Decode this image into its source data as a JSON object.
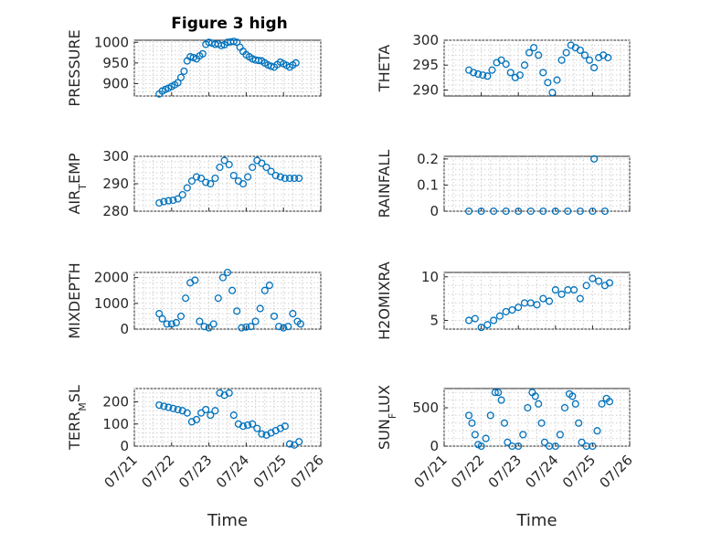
{
  "colors": {
    "marker": "#0072bd",
    "axis": "#262626",
    "grid": "#cfcfcf"
  },
  "figure": {
    "title": "Figure 3 high"
  },
  "chart_data": [
    {
      "type": "scatter",
      "id": "pressure",
      "title": "Figure 3 high",
      "ylabel": "PRESSURE",
      "xlabel": "",
      "ylim": [
        870,
        1005
      ],
      "yticks": [
        900,
        950,
        1000
      ],
      "xlim": [
        "07/21",
        "07/26"
      ],
      "xticks": [],
      "grid": "on",
      "x": [
        "07/21 16:00",
        "07/21 18:00",
        "07/21 20:00",
        "07/21 22:00",
        "07/22 00:00",
        "07/22 02:00",
        "07/22 04:00",
        "07/22 06:00",
        "07/22 08:00",
        "07/22 10:00",
        "07/22 12:00",
        "07/22 14:00",
        "07/22 16:00",
        "07/22 18:00",
        "07/22 20:00",
        "07/22 22:00",
        "07/23 00:00",
        "07/23 02:00",
        "07/23 04:00",
        "07/23 06:00",
        "07/23 08:00",
        "07/23 10:00",
        "07/23 12:00",
        "07/23 14:00",
        "07/23 16:00",
        "07/23 18:00",
        "07/23 20:00",
        "07/23 22:00",
        "07/24 00:00",
        "07/24 02:00",
        "07/24 04:00",
        "07/24 06:00",
        "07/24 08:00",
        "07/24 10:00",
        "07/24 12:00",
        "07/24 14:00",
        "07/24 16:00",
        "07/24 18:00",
        "07/24 20:00",
        "07/24 22:00",
        "07/25 00:00",
        "07/25 02:00",
        "07/25 04:00",
        "07/25 06:00",
        "07/25 08:00"
      ],
      "y": [
        875,
        882,
        886,
        889,
        893,
        897,
        902,
        915,
        930,
        955,
        965,
        963,
        960,
        967,
        972,
        995,
        1000,
        998,
        995,
        996,
        992,
        994,
        1000,
        1001,
        1002,
        1000,
        988,
        978,
        970,
        965,
        960,
        957,
        956,
        955,
        950,
        945,
        942,
        940,
        946,
        952,
        948,
        944,
        940,
        945,
        950
      ]
    },
    {
      "type": "scatter",
      "id": "theta",
      "ylabel": "THETA",
      "xlabel": "",
      "ylim": [
        288.8,
        300
      ],
      "yticks": [
        290,
        295,
        300
      ],
      "xlim": [
        "07/21",
        "07/26"
      ],
      "xticks": [],
      "grid": "on",
      "x": [
        "07/21 16:00",
        "07/21 19:00",
        "07/21 22:00",
        "07/22 01:00",
        "07/22 04:00",
        "07/22 07:00",
        "07/22 10:00",
        "07/22 13:00",
        "07/22 16:00",
        "07/22 19:00",
        "07/22 22:00",
        "07/23 01:00",
        "07/23 04:00",
        "07/23 07:00",
        "07/23 10:00",
        "07/23 13:00",
        "07/23 16:00",
        "07/23 19:00",
        "07/23 22:00",
        "07/24 01:00",
        "07/24 04:00",
        "07/24 07:00",
        "07/24 10:00",
        "07/24 13:00",
        "07/24 16:00",
        "07/24 19:00",
        "07/24 22:00",
        "07/25 01:00",
        "07/25 04:00",
        "07/25 07:00",
        "07/25 10:00"
      ],
      "y": [
        294,
        293.5,
        293.2,
        293,
        292.8,
        294,
        295.5,
        296,
        295.2,
        293.5,
        292.5,
        293,
        295,
        297.5,
        298.5,
        297,
        293.5,
        291.5,
        289.5,
        292,
        296,
        297.5,
        299,
        298.5,
        298,
        297,
        296,
        294.5,
        296.5,
        297,
        296.5
      ]
    },
    {
      "type": "scatter",
      "id": "air_temp",
      "ylabel": "AIR_TEMP",
      "xlabel": "",
      "ylim": [
        280,
        300
      ],
      "yticks": [
        280,
        290,
        300
      ],
      "xlim": [
        "07/21",
        "07/26"
      ],
      "xticks": [],
      "grid": "on",
      "x": [
        "07/21 16:00",
        "07/21 19:00",
        "07/21 22:00",
        "07/22 01:00",
        "07/22 04:00",
        "07/22 07:00",
        "07/22 10:00",
        "07/22 13:00",
        "07/22 16:00",
        "07/22 19:00",
        "07/22 22:00",
        "07/23 01:00",
        "07/23 04:00",
        "07/23 07:00",
        "07/23 10:00",
        "07/23 13:00",
        "07/23 16:00",
        "07/23 19:00",
        "07/23 22:00",
        "07/24 01:00",
        "07/24 04:00",
        "07/24 07:00",
        "07/24 10:00",
        "07/24 13:00",
        "07/24 16:00",
        "07/24 19:00",
        "07/24 22:00",
        "07/25 01:00",
        "07/25 04:00",
        "07/25 07:00",
        "07/25 10:00"
      ],
      "y": [
        283,
        283.5,
        283.8,
        284,
        284.5,
        286,
        288.5,
        291,
        292.5,
        292,
        290.5,
        290,
        292,
        296,
        298.5,
        297,
        293,
        291,
        290,
        292.5,
        296,
        298.5,
        297.5,
        296,
        294.5,
        293,
        292.5,
        292,
        292,
        292,
        292
      ]
    },
    {
      "type": "scatter",
      "id": "rainfall",
      "ylabel": "RAINFALL",
      "xlabel": "",
      "ylim": [
        0,
        0.21
      ],
      "yticks": [
        0,
        0.1,
        0.2
      ],
      "xlim": [
        "07/21",
        "07/26"
      ],
      "xticks": [],
      "grid": "on",
      "x": [
        "07/21 16:00",
        "07/22 00:00",
        "07/22 08:00",
        "07/22 16:00",
        "07/23 00:00",
        "07/23 08:00",
        "07/23 16:00",
        "07/24 00:00",
        "07/24 08:00",
        "07/24 16:00",
        "07/25 00:00",
        "07/25 08:00",
        "07/25 01:00"
      ],
      "y": [
        0,
        0,
        0,
        0,
        0,
        0,
        0,
        0,
        0,
        0,
        0,
        0,
        0.2
      ]
    },
    {
      "type": "scatter",
      "id": "mixdepth",
      "ylabel": "MIXDEPTH",
      "xlabel": "",
      "ylim": [
        0,
        2200
      ],
      "yticks": [
        0,
        1000,
        2000
      ],
      "xlim": [
        "07/21",
        "07/26"
      ],
      "xticks": [],
      "grid": "on",
      "x": [
        "07/21 16:00",
        "07/21 18:00",
        "07/21 21:00",
        "07/22 00:00",
        "07/22 03:00",
        "07/22 06:00",
        "07/22 09:00",
        "07/22 12:00",
        "07/22 15:00",
        "07/22 18:00",
        "07/22 21:00",
        "07/23 00:00",
        "07/23 03:00",
        "07/23 06:00",
        "07/23 09:00",
        "07/23 12:00",
        "07/23 15:00",
        "07/23 18:00",
        "07/23 21:00",
        "07/24 00:00",
        "07/24 03:00",
        "07/24 06:00",
        "07/24 09:00",
        "07/24 12:00",
        "07/24 15:00",
        "07/24 18:00",
        "07/24 21:00",
        "07/25 00:00",
        "07/25 03:00",
        "07/25 06:00",
        "07/25 09:00",
        "07/25 11:00"
      ],
      "y": [
        600,
        400,
        200,
        200,
        250,
        500,
        1200,
        1800,
        1900,
        300,
        100,
        50,
        200,
        1200,
        2000,
        2200,
        1500,
        700,
        50,
        80,
        100,
        300,
        800,
        1500,
        1700,
        500,
        100,
        50,
        100,
        600,
        300,
        200
      ]
    },
    {
      "type": "scatter",
      "id": "h2omixra",
      "ylabel": "H2OMIXRA",
      "xlabel": "",
      "ylim": [
        4,
        10.5
      ],
      "yticks": [
        5,
        10
      ],
      "xlim": [
        "07/21",
        "07/26"
      ],
      "xticks": [],
      "grid": "on",
      "x": [
        "07/21 16:00",
        "07/21 20:00",
        "07/22 00:00",
        "07/22 04:00",
        "07/22 08:00",
        "07/22 12:00",
        "07/22 16:00",
        "07/22 20:00",
        "07/23 00:00",
        "07/23 04:00",
        "07/23 08:00",
        "07/23 12:00",
        "07/23 16:00",
        "07/23 20:00",
        "07/24 00:00",
        "07/24 04:00",
        "07/24 08:00",
        "07/24 12:00",
        "07/24 16:00",
        "07/24 20:00",
        "07/25 00:00",
        "07/25 04:00",
        "07/25 08:00",
        "07/25 11:00"
      ],
      "y": [
        5,
        5.2,
        4.2,
        4.5,
        5,
        5.5,
        6,
        6.2,
        6.5,
        7,
        7,
        6.8,
        7.5,
        7.2,
        8.5,
        8,
        8.5,
        8.5,
        7.5,
        9,
        9.8,
        9.5,
        9,
        9.3
      ]
    },
    {
      "type": "scatter",
      "id": "terr_msl",
      "ylabel": "TERR_MSL",
      "xlabel": "Time",
      "ylim": [
        0,
        260
      ],
      "yticks": [
        0,
        100,
        200
      ],
      "xlim": [
        "07/21",
        "07/26"
      ],
      "xticks": [
        "07/21",
        "07/22",
        "07/23",
        "07/24",
        "07/25",
        "07/26"
      ],
      "grid": "on",
      "x": [
        "07/21 16:00",
        "07/21 19:00",
        "07/21 22:00",
        "07/22 01:00",
        "07/22 04:00",
        "07/22 07:00",
        "07/22 10:00",
        "07/22 13:00",
        "07/22 16:00",
        "07/22 19:00",
        "07/22 22:00",
        "07/23 01:00",
        "07/23 04:00",
        "07/23 07:00",
        "07/23 10:00",
        "07/23 13:00",
        "07/23 16:00",
        "07/23 19:00",
        "07/23 22:00",
        "07/24 01:00",
        "07/24 04:00",
        "07/24 07:00",
        "07/24 10:00",
        "07/24 13:00",
        "07/24 16:00",
        "07/24 19:00",
        "07/24 22:00",
        "07/25 01:00",
        "07/25 04:00",
        "07/25 07:00",
        "07/25 10:00"
      ],
      "y": [
        185,
        180,
        175,
        170,
        165,
        160,
        150,
        110,
        120,
        150,
        165,
        140,
        160,
        240,
        230,
        240,
        140,
        100,
        90,
        95,
        100,
        80,
        55,
        50,
        60,
        70,
        80,
        90,
        10,
        5,
        20
      ]
    },
    {
      "type": "scatter",
      "id": "sun_flux",
      "ylabel": "SUN_FLUX",
      "xlabel": "Time",
      "ylim": [
        0,
        750
      ],
      "yticks": [
        0,
        500
      ],
      "xlim": [
        "07/21",
        "07/26"
      ],
      "xticks": [
        "07/21",
        "07/22",
        "07/23",
        "07/24",
        "07/25",
        "07/26"
      ],
      "grid": "on",
      "x": [
        "07/21 16:00",
        "07/21 18:00",
        "07/21 20:00",
        "07/21 22:00",
        "07/22 00:00",
        "07/22 03:00",
        "07/22 06:00",
        "07/22 09:00",
        "07/22 11:00",
        "07/22 13:00",
        "07/22 15:00",
        "07/22 17:00",
        "07/22 20:00",
        "07/23 00:00",
        "07/23 03:00",
        "07/23 06:00",
        "07/23 09:00",
        "07/23 11:00",
        "07/23 13:00",
        "07/23 15:00",
        "07/23 17:00",
        "07/23 20:00",
        "07/24 00:00",
        "07/24 03:00",
        "07/24 06:00",
        "07/24 09:00",
        "07/24 11:00",
        "07/24 13:00",
        "07/24 15:00",
        "07/24 17:00",
        "07/24 20:00",
        "07/25 00:00",
        "07/25 03:00",
        "07/25 06:00",
        "07/25 09:00",
        "07/25 11:00"
      ],
      "y": [
        400,
        300,
        150,
        20,
        0,
        100,
        400,
        700,
        700,
        600,
        300,
        50,
        0,
        0,
        150,
        500,
        700,
        650,
        550,
        300,
        50,
        0,
        0,
        150,
        500,
        680,
        650,
        550,
        300,
        50,
        0,
        0,
        200,
        550,
        620,
        580
      ]
    }
  ]
}
